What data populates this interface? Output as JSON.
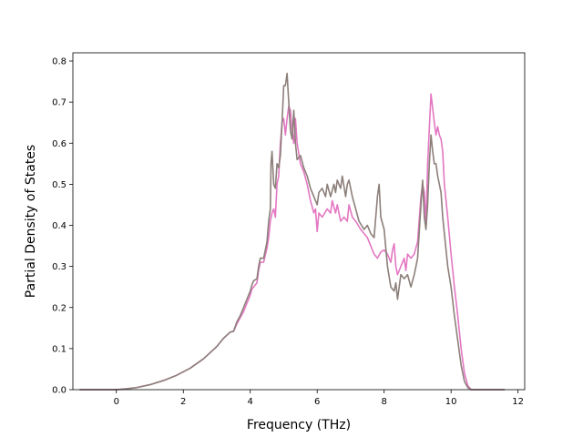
{
  "chart_data": {
    "type": "line",
    "title": "",
    "xlabel": "Frequency (THz)",
    "ylabel": "Partial Density of States",
    "xlim": [
      -1.3,
      12.2
    ],
    "ylim": [
      0,
      0.82
    ],
    "xticks": [
      0,
      2,
      4,
      6,
      8,
      10,
      12
    ],
    "yticks": [
      0.0,
      0.1,
      0.2,
      0.3,
      0.4,
      0.5,
      0.6,
      0.7,
      0.8
    ],
    "grid": false,
    "legend": "none",
    "series": [
      {
        "color": "#e377c2",
        "points": [
          [
            -1.1,
            0
          ],
          [
            -0.5,
            0
          ],
          [
            0,
            0
          ],
          [
            0.3,
            0.002
          ],
          [
            0.6,
            0.005
          ],
          [
            1.0,
            0.012
          ],
          [
            1.4,
            0.022
          ],
          [
            1.8,
            0.035
          ],
          [
            2.2,
            0.052
          ],
          [
            2.6,
            0.075
          ],
          [
            3.0,
            0.105
          ],
          [
            3.2,
            0.125
          ],
          [
            3.4,
            0.14
          ],
          [
            3.5,
            0.142
          ],
          [
            3.6,
            0.16
          ],
          [
            3.7,
            0.175
          ],
          [
            3.8,
            0.19
          ],
          [
            3.9,
            0.21
          ],
          [
            4.0,
            0.23
          ],
          [
            4.05,
            0.245
          ],
          [
            4.1,
            0.25
          ],
          [
            4.2,
            0.26
          ],
          [
            4.25,
            0.29
          ],
          [
            4.3,
            0.31
          ],
          [
            4.4,
            0.31
          ],
          [
            4.5,
            0.345
          ],
          [
            4.55,
            0.37
          ],
          [
            4.6,
            0.41
          ],
          [
            4.65,
            0.43
          ],
          [
            4.7,
            0.44
          ],
          [
            4.75,
            0.42
          ],
          [
            4.8,
            0.5
          ],
          [
            4.85,
            0.52
          ],
          [
            4.9,
            0.6
          ],
          [
            4.95,
            0.65
          ],
          [
            5.0,
            0.66
          ],
          [
            5.05,
            0.62
          ],
          [
            5.1,
            0.66
          ],
          [
            5.15,
            0.69
          ],
          [
            5.2,
            0.68
          ],
          [
            5.25,
            0.63
          ],
          [
            5.3,
            0.6
          ],
          [
            5.35,
            0.66
          ],
          [
            5.4,
            0.6
          ],
          [
            5.5,
            0.55
          ],
          [
            5.6,
            0.53
          ],
          [
            5.7,
            0.5
          ],
          [
            5.8,
            0.46
          ],
          [
            5.9,
            0.43
          ],
          [
            5.95,
            0.44
          ],
          [
            6.0,
            0.385
          ],
          [
            6.05,
            0.43
          ],
          [
            6.15,
            0.42
          ],
          [
            6.3,
            0.44
          ],
          [
            6.4,
            0.43
          ],
          [
            6.45,
            0.46
          ],
          [
            6.55,
            0.43
          ],
          [
            6.6,
            0.45
          ],
          [
            6.7,
            0.41
          ],
          [
            6.8,
            0.42
          ],
          [
            6.9,
            0.41
          ],
          [
            6.95,
            0.45
          ],
          [
            7.05,
            0.42
          ],
          [
            7.15,
            0.41
          ],
          [
            7.3,
            0.39
          ],
          [
            7.4,
            0.38
          ],
          [
            7.5,
            0.37
          ],
          [
            7.6,
            0.35
          ],
          [
            7.7,
            0.33
          ],
          [
            7.8,
            0.32
          ],
          [
            7.9,
            0.335
          ],
          [
            8.0,
            0.34
          ],
          [
            8.1,
            0.33
          ],
          [
            8.2,
            0.31
          ],
          [
            8.25,
            0.34
          ],
          [
            8.3,
            0.355
          ],
          [
            8.35,
            0.3
          ],
          [
            8.4,
            0.28
          ],
          [
            8.5,
            0.3
          ],
          [
            8.6,
            0.32
          ],
          [
            8.65,
            0.29
          ],
          [
            8.7,
            0.33
          ],
          [
            8.8,
            0.32
          ],
          [
            8.9,
            0.33
          ],
          [
            9.0,
            0.36
          ],
          [
            9.1,
            0.47
          ],
          [
            9.15,
            0.5
          ],
          [
            9.2,
            0.48
          ],
          [
            9.25,
            0.4
          ],
          [
            9.3,
            0.55
          ],
          [
            9.4,
            0.72
          ],
          [
            9.5,
            0.65
          ],
          [
            9.55,
            0.62
          ],
          [
            9.6,
            0.64
          ],
          [
            9.65,
            0.62
          ],
          [
            9.7,
            0.61
          ],
          [
            9.75,
            0.58
          ],
          [
            9.8,
            0.5
          ],
          [
            9.9,
            0.42
          ],
          [
            10.0,
            0.33
          ],
          [
            10.1,
            0.25
          ],
          [
            10.2,
            0.18
          ],
          [
            10.3,
            0.1
          ],
          [
            10.4,
            0.04
          ],
          [
            10.5,
            0.01
          ],
          [
            10.6,
            0
          ],
          [
            11.0,
            0
          ],
          [
            11.6,
            0
          ]
        ]
      },
      {
        "color": "#8c7f7a",
        "points": [
          [
            -1.1,
            0
          ],
          [
            -0.5,
            0
          ],
          [
            0,
            0
          ],
          [
            0.3,
            0.002
          ],
          [
            0.6,
            0.005
          ],
          [
            1.0,
            0.012
          ],
          [
            1.4,
            0.022
          ],
          [
            1.8,
            0.035
          ],
          [
            2.2,
            0.052
          ],
          [
            2.6,
            0.075
          ],
          [
            3.0,
            0.105
          ],
          [
            3.2,
            0.125
          ],
          [
            3.4,
            0.14
          ],
          [
            3.5,
            0.142
          ],
          [
            3.6,
            0.165
          ],
          [
            3.7,
            0.18
          ],
          [
            3.8,
            0.2
          ],
          [
            3.9,
            0.22
          ],
          [
            4.0,
            0.24
          ],
          [
            4.05,
            0.255
          ],
          [
            4.1,
            0.265
          ],
          [
            4.2,
            0.27
          ],
          [
            4.25,
            0.3
          ],
          [
            4.3,
            0.32
          ],
          [
            4.4,
            0.32
          ],
          [
            4.5,
            0.36
          ],
          [
            4.55,
            0.41
          ],
          [
            4.6,
            0.44
          ],
          [
            4.62,
            0.55
          ],
          [
            4.65,
            0.58
          ],
          [
            4.7,
            0.5
          ],
          [
            4.75,
            0.49
          ],
          [
            4.8,
            0.55
          ],
          [
            4.85,
            0.54
          ],
          [
            4.9,
            0.57
          ],
          [
            4.95,
            0.65
          ],
          [
            5.0,
            0.74
          ],
          [
            5.05,
            0.74
          ],
          [
            5.1,
            0.77
          ],
          [
            5.15,
            0.7
          ],
          [
            5.2,
            0.63
          ],
          [
            5.25,
            0.61
          ],
          [
            5.3,
            0.68
          ],
          [
            5.35,
            0.6
          ],
          [
            5.4,
            0.56
          ],
          [
            5.5,
            0.57
          ],
          [
            5.6,
            0.54
          ],
          [
            5.7,
            0.52
          ],
          [
            5.8,
            0.49
          ],
          [
            5.9,
            0.47
          ],
          [
            5.95,
            0.46
          ],
          [
            6.0,
            0.45
          ],
          [
            6.05,
            0.48
          ],
          [
            6.15,
            0.49
          ],
          [
            6.25,
            0.47
          ],
          [
            6.3,
            0.5
          ],
          [
            6.4,
            0.47
          ],
          [
            6.5,
            0.5
          ],
          [
            6.55,
            0.48
          ],
          [
            6.6,
            0.51
          ],
          [
            6.7,
            0.49
          ],
          [
            6.75,
            0.52
          ],
          [
            6.85,
            0.47
          ],
          [
            6.9,
            0.5
          ],
          [
            6.95,
            0.51
          ],
          [
            7.05,
            0.47
          ],
          [
            7.15,
            0.44
          ],
          [
            7.25,
            0.41
          ],
          [
            7.4,
            0.39
          ],
          [
            7.5,
            0.4
          ],
          [
            7.6,
            0.38
          ],
          [
            7.7,
            0.37
          ],
          [
            7.75,
            0.42
          ],
          [
            7.8,
            0.47
          ],
          [
            7.85,
            0.5
          ],
          [
            7.9,
            0.42
          ],
          [
            8.0,
            0.39
          ],
          [
            8.1,
            0.3
          ],
          [
            8.2,
            0.25
          ],
          [
            8.3,
            0.24
          ],
          [
            8.35,
            0.26
          ],
          [
            8.4,
            0.22
          ],
          [
            8.5,
            0.28
          ],
          [
            8.6,
            0.27
          ],
          [
            8.7,
            0.28
          ],
          [
            8.8,
            0.25
          ],
          [
            8.9,
            0.28
          ],
          [
            9.0,
            0.32
          ],
          [
            9.1,
            0.45
          ],
          [
            9.15,
            0.51
          ],
          [
            9.2,
            0.42
          ],
          [
            9.25,
            0.39
          ],
          [
            9.3,
            0.45
          ],
          [
            9.35,
            0.55
          ],
          [
            9.4,
            0.62
          ],
          [
            9.45,
            0.58
          ],
          [
            9.5,
            0.55
          ],
          [
            9.55,
            0.55
          ],
          [
            9.6,
            0.52
          ],
          [
            9.65,
            0.5
          ],
          [
            9.7,
            0.48
          ],
          [
            9.75,
            0.42
          ],
          [
            9.8,
            0.38
          ],
          [
            9.9,
            0.3
          ],
          [
            10.0,
            0.25
          ],
          [
            10.1,
            0.18
          ],
          [
            10.2,
            0.12
          ],
          [
            10.3,
            0.06
          ],
          [
            10.4,
            0.02
          ],
          [
            10.5,
            0.005
          ],
          [
            10.6,
            0
          ],
          [
            11.0,
            0
          ],
          [
            11.6,
            0
          ]
        ]
      }
    ]
  }
}
